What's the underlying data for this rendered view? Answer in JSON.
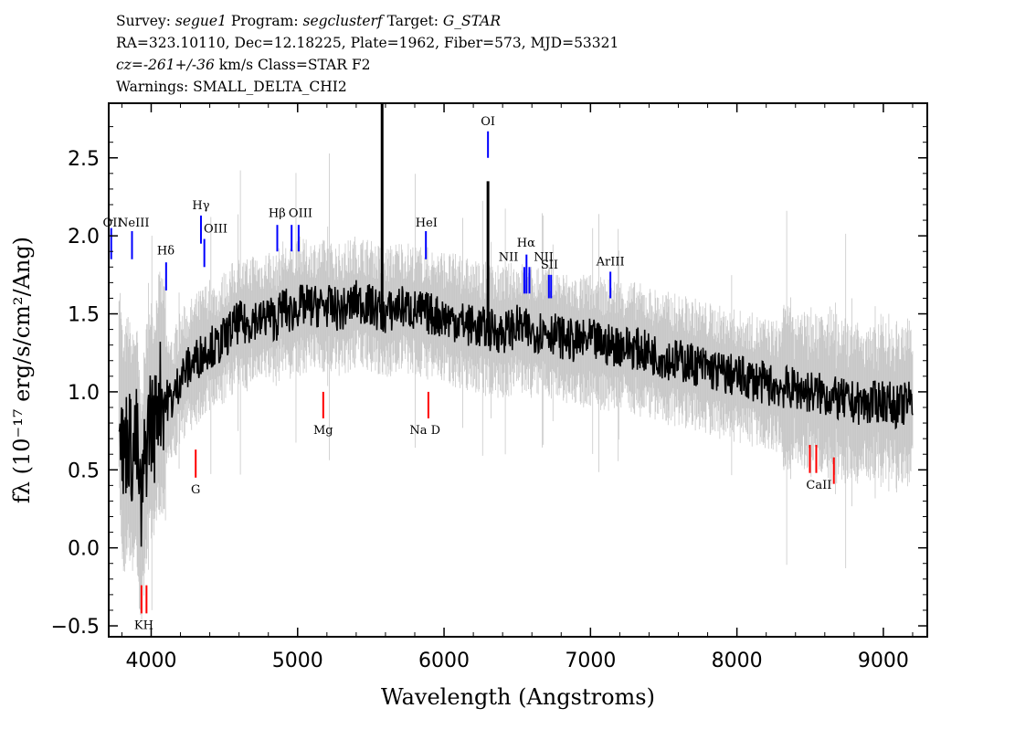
{
  "header": {
    "survey_label": "Survey:",
    "survey": "segue1",
    "program_label": "Program:",
    "program": "segclusterf",
    "target_label": "Target:",
    "target": "G_STAR",
    "line2": "RA=323.10110, Dec=12.18225, Plate=1962, Fiber=573, MJD=53321",
    "cz": "cz=-261+/-36",
    "cz_rest": "km/s Class=STAR F2",
    "warnings": "Warnings: SMALL_DELTA_CHI2"
  },
  "chart_data": {
    "type": "line",
    "xlabel": "Wavelength (Angstroms)",
    "ylabel": "fλ (10⁻¹⁷ erg/s/cm²/Ang)",
    "xlim": [
      3710,
      9300
    ],
    "ylim": [
      -0.57,
      2.85
    ],
    "x_ticks": [
      4000,
      5000,
      6000,
      7000,
      8000,
      9000
    ],
    "y_ticks": [
      -0.5,
      0.0,
      0.5,
      1.0,
      1.5,
      2.0,
      2.5
    ],
    "y_tick_labels": [
      "−0.5",
      "0.0",
      "0.5",
      "1.0",
      "1.5",
      "2.0",
      "2.5"
    ],
    "series": [
      {
        "color": "#000000",
        "x": [
          3780,
          3810,
          3840,
          3870,
          3900,
          3930,
          3960,
          3990,
          4020,
          4050,
          4100,
          4150,
          4200,
          4250,
          4300,
          4350,
          4400,
          4450,
          4500,
          4550,
          4600,
          4650,
          4700,
          4750,
          4800,
          4850,
          4900,
          4950,
          5000,
          5100,
          5200,
          5300,
          5400,
          5500,
          5600,
          5700,
          5800,
          5900,
          6000,
          6100,
          6200,
          6300,
          6400,
          6500,
          6600,
          6700,
          6800,
          6900,
          7000,
          7100,
          7200,
          7300,
          7400,
          7500,
          7600,
          7700,
          7800,
          7900,
          8000,
          8100,
          8200,
          8300,
          8400,
          8500,
          8600,
          8700,
          8800,
          8900,
          9000,
          9100,
          9200
        ],
        "values": [
          1.05,
          0.55,
          0.75,
          0.6,
          0.7,
          0.2,
          0.6,
          0.85,
          0.75,
          1.0,
          0.95,
          0.95,
          1.1,
          1.15,
          1.2,
          1.25,
          1.3,
          1.28,
          1.35,
          1.4,
          1.45,
          1.42,
          1.48,
          1.45,
          1.5,
          1.45,
          1.55,
          1.5,
          1.55,
          1.55,
          1.55,
          1.52,
          1.58,
          1.55,
          1.5,
          1.55,
          1.52,
          1.5,
          1.48,
          1.45,
          1.42,
          1.4,
          1.38,
          1.42,
          1.38,
          1.4,
          1.35,
          1.32,
          1.33,
          1.3,
          1.3,
          1.28,
          1.25,
          1.22,
          1.2,
          1.18,
          1.15,
          1.12,
          1.1,
          1.08,
          1.05,
          1.03,
          1.02,
          1.0,
          0.98,
          0.95,
          0.93,
          0.92,
          0.95,
          0.9,
          0.95
        ]
      }
    ],
    "spikes": [
      {
        "x": 5577,
        "y": 2.85
      },
      {
        "x": 6300,
        "y": 2.35
      }
    ],
    "emission_lines": [
      {
        "label": "OII",
        "x": 3727,
        "y_bottom": 1.85,
        "y_top": 2.05,
        "lx": 3735,
        "ly": 2.06
      },
      {
        "label": "NeIII",
        "x": 3869,
        "y_bottom": 1.85,
        "y_top": 2.03,
        "lx": 3880,
        "ly": 2.06
      },
      {
        "label": "Hδ",
        "x": 4102,
        "y_bottom": 1.65,
        "y_top": 1.83,
        "lx": 4100,
        "ly": 1.88
      },
      {
        "label": "Hγ",
        "x": 4340,
        "y_bottom": 1.95,
        "y_top": 2.13,
        "lx": 4340,
        "ly": 2.17
      },
      {
        "label": "OIII",
        "x": 4363,
        "y_bottom": 1.8,
        "y_top": 1.98,
        "lx": 4440,
        "ly": 2.02
      },
      {
        "label": "Hβ",
        "x": 4861,
        "y_bottom": 1.9,
        "y_top": 2.07,
        "lx": 4860,
        "ly": 2.12
      },
      {
        "label": "OIII",
        "x": 4959,
        "y_bottom": 1.9,
        "y_top": 2.07,
        "lx": 5020,
        "ly": 2.12
      },
      {
        "label": "OIII",
        "x": 5007,
        "y_bottom": 1.9,
        "y_top": 2.07
      },
      {
        "label": "HeI",
        "x": 5876,
        "y_bottom": 1.85,
        "y_top": 2.03,
        "lx": 5880,
        "ly": 2.06
      },
      {
        "label": "OI",
        "x": 6300,
        "y_bottom": 2.5,
        "y_top": 2.67,
        "lx": 6300,
        "ly": 2.71
      },
      {
        "label": "NII",
        "x": 6548,
        "y_bottom": 1.63,
        "y_top": 1.8,
        "lx": 6440,
        "ly": 1.84
      },
      {
        "label": "Hα",
        "x": 6563,
        "y_bottom": 1.63,
        "y_top": 1.88,
        "lx": 6560,
        "ly": 1.93
      },
      {
        "label": "NII",
        "x": 6583,
        "y_bottom": 1.63,
        "y_top": 1.8,
        "lx": 6680,
        "ly": 1.84
      },
      {
        "label": "SII",
        "x": 6716,
        "y_bottom": 1.6,
        "y_top": 1.75,
        "lx": 6720,
        "ly": 1.79
      },
      {
        "label": "SII",
        "x": 6731,
        "y_bottom": 1.6,
        "y_top": 1.75
      },
      {
        "label": "ArIII",
        "x": 7136,
        "y_bottom": 1.6,
        "y_top": 1.77,
        "lx": 7136,
        "ly": 1.81
      }
    ],
    "absorption_lines": [
      {
        "label": "KH",
        "x": 3934,
        "y_bottom": -0.42,
        "y_top": -0.24,
        "lx": 3950,
        "ly": -0.52
      },
      {
        "label": "",
        "x": 3968,
        "y_bottom": -0.42,
        "y_top": -0.24
      },
      {
        "label": "G",
        "x": 4304,
        "y_bottom": 0.45,
        "y_top": 0.63,
        "lx": 4304,
        "ly": 0.35
      },
      {
        "label": "Mg",
        "x": 5175,
        "y_bottom": 0.83,
        "y_top": 1.0,
        "lx": 5175,
        "ly": 0.73
      },
      {
        "label": "Na  D",
        "x": 5893,
        "y_bottom": 0.83,
        "y_top": 1.0,
        "lx": 5870,
        "ly": 0.73
      },
      {
        "label": "CaII",
        "x": 8498,
        "y_bottom": 0.48,
        "y_top": 0.66,
        "lx": 8560,
        "ly": 0.38
      },
      {
        "label": "",
        "x": 8542,
        "y_bottom": 0.48,
        "y_top": 0.66
      },
      {
        "label": "",
        "x": 8662,
        "y_bottom": 0.41,
        "y_top": 0.58
      }
    ],
    "emission_color": "#0000ff",
    "absorption_color": "#ff0000",
    "error_color": "#c8c8c8",
    "grid": false,
    "legend": "none"
  }
}
